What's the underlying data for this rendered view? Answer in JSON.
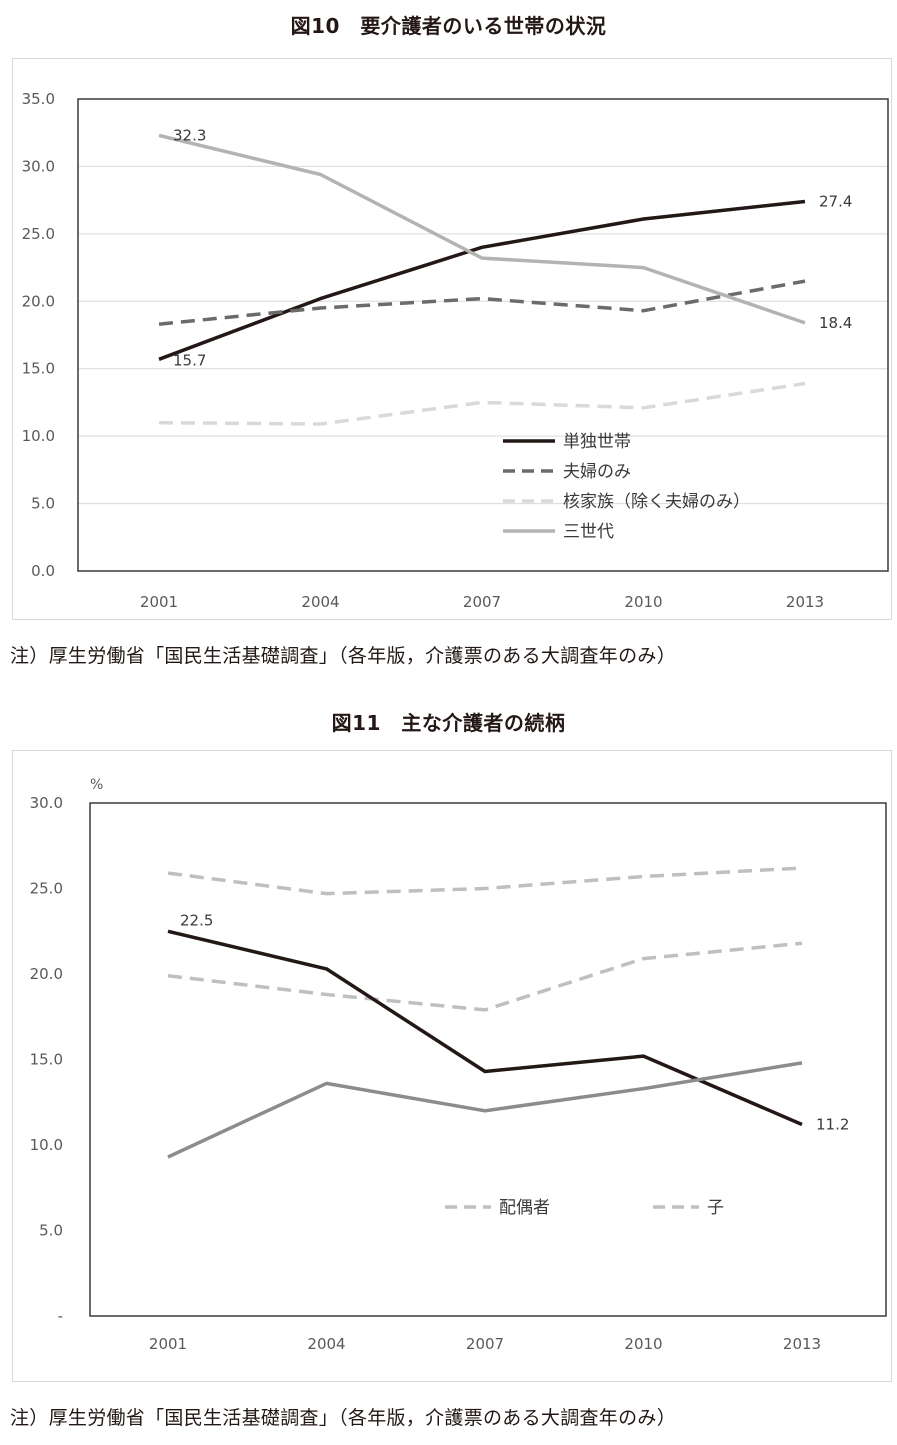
{
  "figures": [
    {
      "title": "図10　要介護者のいる世帯の状況",
      "note": "注）厚生労働省「国民生活基礎調査」（各年版，介護票のある大調査年のみ）"
    },
    {
      "title": "図11　主な介護者の続柄",
      "note": "注）厚生労働省「国民生活基礎調査」（各年版，介護票のある大調査年のみ）"
    }
  ],
  "chart_data": [
    {
      "type": "line",
      "title": "図10　要介護者のいる世帯の状況",
      "x": [
        "2001",
        "2004",
        "2007",
        "2010",
        "2013"
      ],
      "ylim": [
        0,
        35
      ],
      "yticks": [
        "0.0",
        "5.0",
        "10.0",
        "15.0",
        "20.0",
        "25.0",
        "30.0",
        "35.0"
      ],
      "ylabel": "",
      "grid": true,
      "legend_position": "lower-center",
      "series": [
        {
          "name": "単独世帯",
          "values": [
            15.7,
            20.2,
            24.0,
            26.1,
            27.4
          ],
          "color": "#231815",
          "style": "solid",
          "labels": [
            {
              "index": 0,
              "text": "15.7",
              "pos": "below"
            },
            {
              "index": 4,
              "text": "27.4",
              "pos": "right"
            }
          ]
        },
        {
          "name": "夫婦のみ",
          "values": [
            18.3,
            19.5,
            20.2,
            19.3,
            21.5
          ],
          "color": "#6b6b6b",
          "style": "dashed",
          "labels": []
        },
        {
          "name": "核家族（除く夫婦のみ）",
          "values": [
            11.0,
            10.9,
            12.5,
            12.1,
            13.9
          ],
          "color": "#d9d9d9",
          "style": "dashed",
          "labels": []
        },
        {
          "name": "三世代",
          "values": [
            32.3,
            29.4,
            23.2,
            22.5,
            18.4
          ],
          "color": "#b3b3b3",
          "style": "solid",
          "labels": [
            {
              "index": 0,
              "text": "32.3",
              "pos": "right"
            },
            {
              "index": 4,
              "text": "18.4",
              "pos": "right"
            }
          ]
        }
      ]
    },
    {
      "type": "line",
      "title": "図11　主な介護者の続柄",
      "x": [
        "2001",
        "2004",
        "2007",
        "2010",
        "2013"
      ],
      "ylim": [
        0,
        30
      ],
      "yticks": [
        "-",
        "5.0",
        "10.0",
        "15.0",
        "20.0",
        "25.0",
        "30.0"
      ],
      "ylabel": "%",
      "grid": false,
      "legend_position": "lower-center",
      "series": [
        {
          "name": "配偶者",
          "values": [
            25.9,
            24.7,
            25.0,
            25.7,
            26.2
          ],
          "color": "#bfbfbf",
          "style": "dashed",
          "labels": [],
          "in_legend": true
        },
        {
          "name": "子",
          "values": [
            19.9,
            18.8,
            17.9,
            20.9,
            21.8
          ],
          "color": "#bfbfbf",
          "style": "dashed",
          "labels": [],
          "in_legend": true
        },
        {
          "name": "",
          "values": [
            22.5,
            20.3,
            14.3,
            15.2,
            11.2
          ],
          "color": "#231815",
          "style": "solid",
          "in_legend": false,
          "labels": [
            {
              "index": 0,
              "text": "22.5",
              "pos": "above-right"
            },
            {
              "index": 4,
              "text": "11.2",
              "pos": "right"
            }
          ]
        },
        {
          "name": "",
          "values": [
            9.3,
            13.6,
            12.0,
            13.3,
            14.8
          ],
          "color": "#8c8c8c",
          "style": "solid",
          "labels": [],
          "in_legend": false
        }
      ]
    }
  ]
}
